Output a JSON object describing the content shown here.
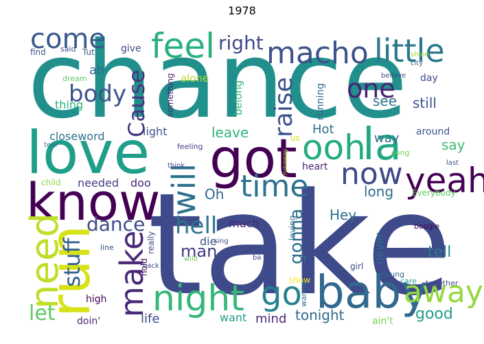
{
  "title": "1978",
  "words": [
    {
      "text": "chance",
      "color": "#21908d"
    },
    {
      "text": "take",
      "color": "#3e4a89"
    },
    {
      "text": "love",
      "color": "#1f9e89"
    },
    {
      "text": "know",
      "color": "#440154"
    },
    {
      "text": "got",
      "color": "#440154"
    },
    {
      "text": "run",
      "color": "#d8e219"
    },
    {
      "text": "baby",
      "color": "#31688e"
    },
    {
      "text": "night",
      "color": "#35b779"
    },
    {
      "text": "macho",
      "color": "#3b528b"
    },
    {
      "text": "little",
      "color": "#2a788e"
    },
    {
      "text": "feel",
      "color": "#2ab07f"
    },
    {
      "text": "come",
      "color": "#38598c"
    },
    {
      "text": "ooh",
      "color": "#25ab82"
    },
    {
      "text": "la",
      "color": "#22a785"
    },
    {
      "text": "now",
      "color": "#3e4a89"
    },
    {
      "text": "time",
      "color": "#2c728e"
    },
    {
      "text": "yeah",
      "color": "#440154"
    },
    {
      "text": "make",
      "color": "#482878"
    },
    {
      "text": "need",
      "color": "#bddf26"
    },
    {
      "text": "go",
      "color": "#26828e"
    },
    {
      "text": "away",
      "color": "#95d840"
    },
    {
      "text": "will",
      "color": "#2d708e"
    },
    {
      "text": "one",
      "color": "#482173"
    },
    {
      "text": "body",
      "color": "#3b528b"
    },
    {
      "text": "Cause",
      "color": "#46337e"
    },
    {
      "text": "raise",
      "color": "#3b528b"
    },
    {
      "text": "hell",
      "color": "#2c728e"
    },
    {
      "text": "dance",
      "color": "#3e4a89"
    },
    {
      "text": "stuff",
      "color": "#33638d"
    },
    {
      "text": "gonna",
      "color": "#2e6f8e"
    },
    {
      "text": "let",
      "color": "#5ec962"
    },
    {
      "text": "right",
      "color": "#3e4a89"
    },
    {
      "text": "Oh",
      "color": "#31688e"
    },
    {
      "text": "Hey",
      "color": "#2d708e"
    },
    {
      "text": "long",
      "color": "#306a8e"
    },
    {
      "text": "man",
      "color": "#443983"
    },
    {
      "text": "tell",
      "color": "#277f8e"
    },
    {
      "text": "tonight",
      "color": "#31688e"
    },
    {
      "text": "good",
      "color": "#1f9e89"
    },
    {
      "text": "mind",
      "color": "#482878"
    },
    {
      "text": "life",
      "color": "#3e4a89"
    },
    {
      "text": "Hot",
      "color": "#2e6e8e"
    },
    {
      "text": "leave",
      "color": "#2fb47c"
    },
    {
      "text": "way",
      "color": "#2f6c8e"
    },
    {
      "text": "say",
      "color": "#3dbc74"
    },
    {
      "text": "see",
      "color": "#2c728e"
    },
    {
      "text": "still",
      "color": "#3b528b"
    },
    {
      "text": "ah",
      "color": "#31688e"
    },
    {
      "text": "thing",
      "color": "#2ab07f"
    },
    {
      "text": "closeword",
      "color": "#2c728e"
    },
    {
      "text": "light",
      "color": "#3b528b"
    },
    {
      "text": "needed",
      "color": "#433e85"
    },
    {
      "text": "doo",
      "color": "#482475"
    },
    {
      "text": "much",
      "color": "#482878"
    },
    {
      "text": "die",
      "color": "#3b528b"
    },
    {
      "text": "never",
      "color": "#2c728e"
    },
    {
      "text": "heart",
      "color": "#482173"
    },
    {
      "text": "running",
      "color": "#2f6c8e"
    },
    {
      "text": "belong",
      "color": "#35b779"
    },
    {
      "text": "alone",
      "color": "#b5de2b"
    },
    {
      "text": "something",
      "color": "#481f70"
    },
    {
      "text": "give",
      "color": "#3e4a89"
    },
    {
      "text": "find",
      "color": "#3b528b"
    },
    {
      "text": "said",
      "color": "#3e4a89"
    },
    {
      "text": "Tut",
      "color": "#3b528b"
    },
    {
      "text": "dream",
      "color": "#5ec962"
    },
    {
      "text": "child",
      "color": "#90d743"
    },
    {
      "text": "high",
      "color": "#440154"
    },
    {
      "text": "doin'",
      "color": "#482878"
    },
    {
      "text": "want",
      "color": "#1f9e89"
    },
    {
      "text": "hold",
      "color": "#440154"
    },
    {
      "text": "really",
      "color": "#3e4a89"
    },
    {
      "text": "loving",
      "color": "#2c728e"
    },
    {
      "text": "show",
      "color": "#fde725"
    },
    {
      "text": "wanna",
      "color": "#2c728e"
    },
    {
      "text": "ain't",
      "color": "#7ad151"
    },
    {
      "text": "girl",
      "color": "#3e4a89"
    },
    {
      "text": "young",
      "color": "#31688e"
    },
    {
      "text": "care",
      "color": "#1f9e89"
    },
    {
      "text": "together",
      "color": "#3e4a89"
    },
    {
      "text": "boogie",
      "color": "#440154"
    },
    {
      "text": "Everybody",
      "color": "#5ec962"
    },
    {
      "text": "song",
      "color": "#73d056"
    },
    {
      "text": "around",
      "color": "#3b528b"
    },
    {
      "text": "last",
      "color": "#3b528b"
    },
    {
      "text": "day",
      "color": "#3e4a89"
    },
    {
      "text": "believe",
      "color": "#3e4a89"
    },
    {
      "text": "shine",
      "color": "#a0da39"
    },
    {
      "text": "city",
      "color": "#31688e"
    },
    {
      "text": "feeling",
      "color": "#433e85"
    },
    {
      "text": "tear",
      "color": "#2c728e"
    },
    {
      "text": "think",
      "color": "#3e4a89"
    },
    {
      "text": "runaway",
      "color": "#bddf26"
    },
    {
      "text": "us",
      "color": "#d8e219"
    },
    {
      "text": "sing",
      "color": "#3e4a89"
    },
    {
      "text": "wild",
      "color": "#6ece58"
    },
    {
      "text": "line",
      "color": "#3b528b"
    },
    {
      "text": "ba",
      "color": "#443983"
    },
    {
      "text": "back",
      "color": "#3e4a89"
    }
  ]
}
